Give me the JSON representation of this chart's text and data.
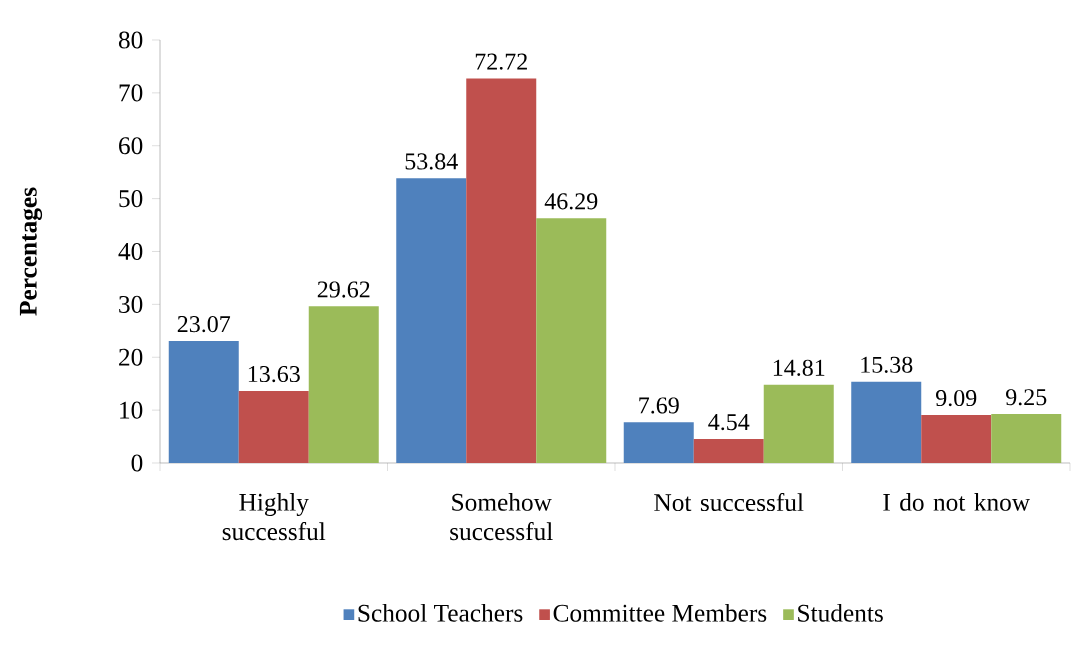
{
  "chart_data": {
    "type": "bar",
    "ylabel": "Percentages",
    "categories": [
      "Highly successful",
      "Somehow successful",
      "Not successful",
      "I do not know"
    ],
    "series": [
      {
        "name": "School Teachers",
        "color": "#4f81bd",
        "values": [
          23.07,
          53.84,
          7.69,
          15.38
        ]
      },
      {
        "name": "Committee Members",
        "color": "#c0504d",
        "values": [
          13.63,
          72.72,
          4.54,
          9.09
        ]
      },
      {
        "name": "Students",
        "color": "#9bbb59",
        "values": [
          29.62,
          46.29,
          14.81,
          9.25
        ]
      }
    ],
    "ylim": [
      0,
      80
    ],
    "yticks": [
      0,
      10,
      20,
      30,
      40,
      50,
      60,
      70,
      80
    ],
    "data_labels": true,
    "legend": "bottom",
    "grid": false
  }
}
